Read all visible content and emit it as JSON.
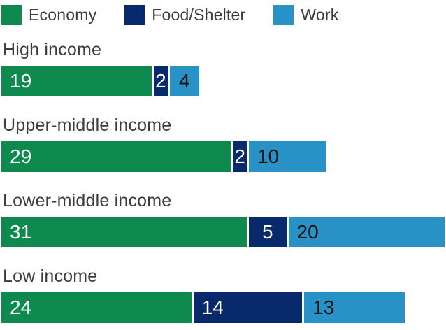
{
  "legend": {
    "items": [
      {
        "label": "Economy",
        "color": "#0e8a4f"
      },
      {
        "label": "Food/Shelter",
        "color": "#08296b"
      },
      {
        "label": "Work",
        "color": "#2892c6"
      }
    ]
  },
  "chart_data": {
    "type": "bar",
    "orientation": "horizontal-stacked",
    "categories": [
      "High income",
      "Upper-middle income",
      "Lower-middle income",
      "Low income"
    ],
    "series": [
      {
        "name": "Economy",
        "color": "#0e8a4f",
        "label_color": "#ffffff",
        "values": [
          19,
          29,
          31,
          24
        ]
      },
      {
        "name": "Food/Shelter",
        "color": "#08296b",
        "label_color": "#ffffff",
        "values": [
          2,
          2,
          5,
          14
        ]
      },
      {
        "name": "Work",
        "color": "#2892c6",
        "label_color": "#121212",
        "values": [
          4,
          10,
          20,
          13
        ]
      }
    ],
    "row_totals": [
      25,
      41,
      56,
      51
    ],
    "x_max_units": 56,
    "separator_color": "#ffffff",
    "background": "#ffffff",
    "category_label_color": "#3d3d3d",
    "legend_position": "top",
    "grid": false,
    "axis_labels_shown": false,
    "value_labels": "inside-segments",
    "small_value_centered_threshold": 5
  }
}
